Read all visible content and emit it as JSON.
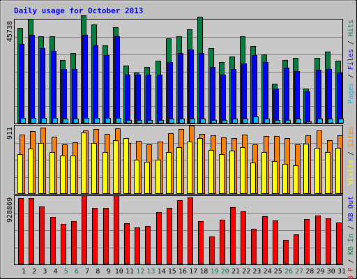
{
  "title": "Daily usage for October 2013",
  "colors": {
    "background": "#c0c0c0",
    "plot": "#c8c8c8",
    "title": "#0000ff",
    "grid": "#808080",
    "pages": "#00c0ff",
    "files": "#0000ff",
    "hits": "#008040",
    "visits": "#ffff00",
    "sites": "#ff8000",
    "kb_in": "#008040",
    "kb_out": "#0000ff",
    "kb_f": "#ff0000",
    "weekday": "#000000",
    "weekend": "#00805c"
  },
  "panels": {
    "top": {
      "max_label": "45738",
      "legend": [
        {
          "text": "Pages",
          "color": "#00c0ff"
        },
        {
          "text": " / ",
          "color": "#000000"
        },
        {
          "text": "Files",
          "color": "#0000ff"
        },
        {
          "text": " / ",
          "color": "#000000"
        },
        {
          "text": "Hits",
          "color": "#008040"
        }
      ]
    },
    "mid": {
      "max_label": "911",
      "legend": [
        {
          "text": "Visits",
          "color": "#ffff00"
        },
        {
          "text": " / ",
          "color": "#000000"
        },
        {
          "text": "Sites",
          "color": "#ff8000"
        }
      ]
    },
    "bottom": {
      "max_label": "928869",
      "legend": [
        {
          "text": "KB F",
          "color": "#ff0000"
        },
        {
          "text": " / ",
          "color": "#000000"
        },
        {
          "text": "KB In",
          "color": "#008040"
        },
        {
          "text": " / ",
          "color": "#000000"
        },
        {
          "text": "KB Out",
          "color": "#0000ff"
        }
      ]
    }
  },
  "chart_data": {
    "type": "bar",
    "title": "Daily usage for October 2013",
    "categories": [
      "1",
      "2",
      "3",
      "4",
      "5",
      "6",
      "7",
      "8",
      "9",
      "10",
      "11",
      "12",
      "13",
      "14",
      "15",
      "16",
      "17",
      "18",
      "19",
      "20",
      "21",
      "22",
      "23",
      "24",
      "25",
      "26",
      "27",
      "28",
      "29",
      "30",
      "31"
    ],
    "weekend_days": [
      "5",
      "6",
      "12",
      "13",
      "19",
      "20",
      "26",
      "27"
    ],
    "panels": [
      {
        "name": "top",
        "ymax": 45738,
        "series": [
          {
            "name": "Hits",
            "values": [
              42000,
              46000,
              38500,
              38500,
              28000,
              31000,
              47500,
              43500,
              34500,
              42500,
              25500,
              22500,
              25000,
              27500,
              37500,
              38500,
              41500,
              47000,
              33000,
              27000,
              29500,
              38500,
              34000,
              30500,
              17500,
              28000,
              29000,
              15500,
              29000,
              31500,
              27500
            ]
          },
          {
            "name": "Files",
            "values": [
              35000,
              39000,
              33000,
              32000,
              24000,
              24000,
              39000,
              34500,
              30000,
              38500,
              21500,
              21500,
              21500,
              21500,
              27000,
              31000,
              32500,
              31000,
              25000,
              21500,
              24000,
              26500,
              30000,
              27000,
              15500,
              24500,
              23000,
              14000,
              23500,
              24000,
              22500
            ]
          },
          {
            "name": "Pages",
            "values": [
              2500,
              2500,
              2500,
              2500,
              2000,
              2000,
              2500,
              2500,
              2500,
              2500,
              1500,
              1500,
              1500,
              1500,
              2000,
              2000,
              2000,
              2000,
              1500,
              1500,
              2000,
              2000,
              3000,
              2000,
              1500,
              1500,
              2000,
              800,
              2000,
              2000,
              2000
            ]
          }
        ]
      },
      {
        "name": "mid",
        "ymax": 911,
        "series": [
          {
            "name": "Sites",
            "values": [
              790,
              840,
              880,
              760,
              660,
              690,
              850,
              860,
              800,
              870,
              680,
              710,
              660,
              700,
              810,
              860,
              910,
              800,
              780,
              750,
              740,
              790,
              660,
              770,
              770,
              740,
              660,
              780,
              850,
              720,
              780
            ]
          },
          {
            "name": "Visits",
            "values": [
              530,
              600,
              680,
              560,
              510,
              510,
              820,
              680,
              560,
              720,
              740,
              460,
              430,
              460,
              560,
              620,
              700,
              740,
              590,
              530,
              580,
              620,
              420,
              560,
              440,
              400,
              380,
              670,
              610,
              560,
              610
            ]
          }
        ]
      },
      {
        "name": "bottom",
        "ymax": 928869,
        "series": [
          {
            "name": "KB F",
            "values": [
              900000,
              900000,
              790000,
              640000,
              550000,
              590000,
              940000,
              770000,
              770000,
              940000,
              560000,
              500000,
              520000,
              710000,
              770000,
              870000,
              910000,
              590000,
              380000,
              610000,
              780000,
              720000,
              480000,
              650000,
              600000,
              330000,
              410000,
              620000,
              660000,
              630000,
              570000
            ]
          },
          {
            "name": "KB In",
            "values": [
              0,
              0,
              0,
              0,
              0,
              0,
              0,
              0,
              0,
              0,
              0,
              0,
              0,
              0,
              0,
              0,
              0,
              0,
              0,
              0,
              0,
              0,
              0,
              0,
              0,
              0,
              0,
              0,
              0,
              0,
              0
            ]
          },
          {
            "name": "KB Out",
            "values": [
              0,
              0,
              0,
              0,
              0,
              0,
              0,
              0,
              0,
              0,
              0,
              0,
              0,
              0,
              0,
              0,
              0,
              0,
              0,
              0,
              0,
              0,
              0,
              0,
              0,
              0,
              0,
              0,
              0,
              0,
              0
            ]
          }
        ]
      }
    ]
  }
}
